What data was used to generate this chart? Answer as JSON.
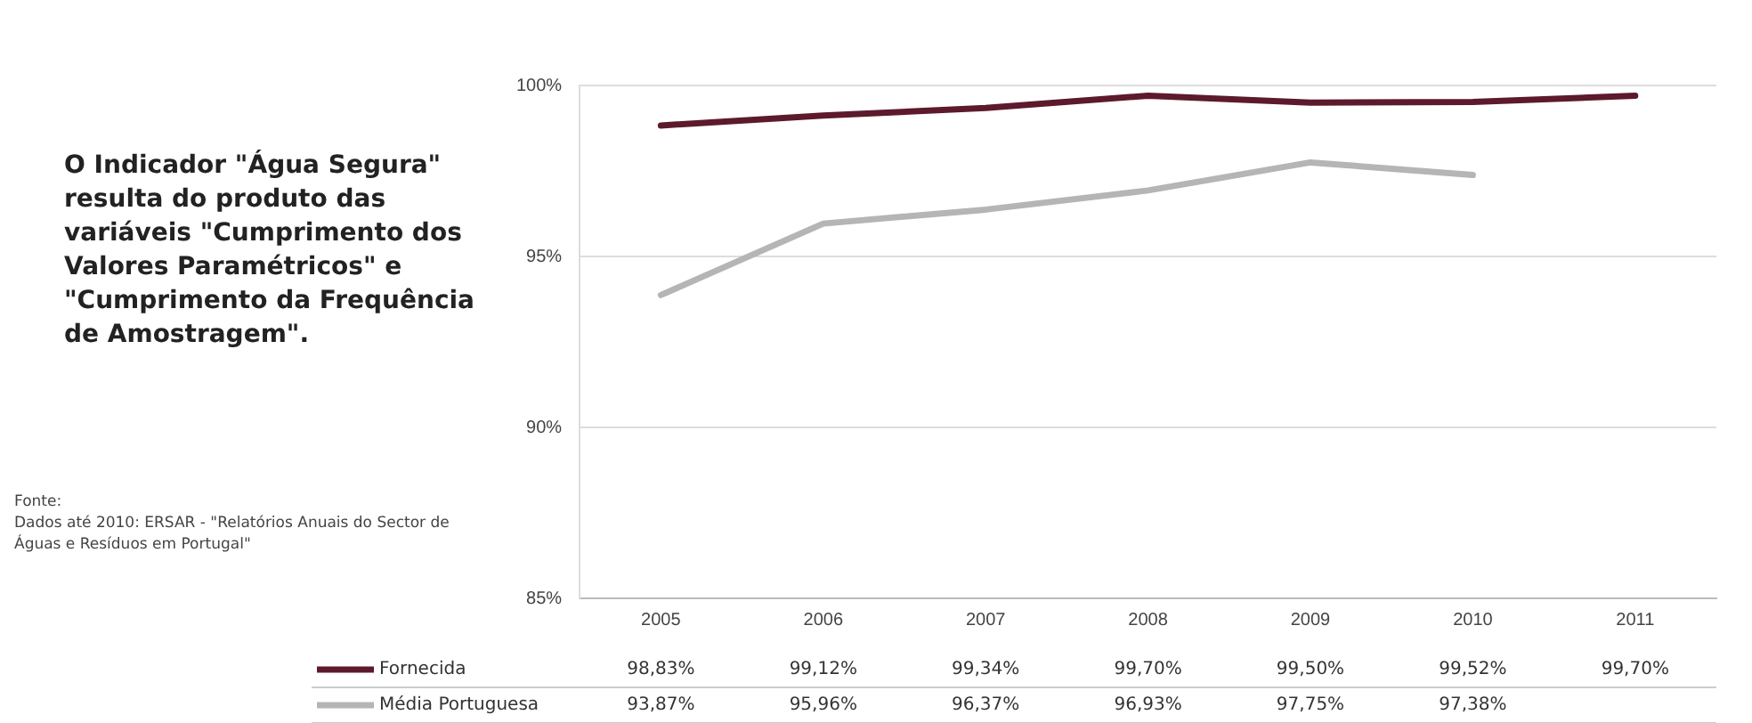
{
  "chart_data": {
    "type": "line",
    "title": "O Indicador \"Água Segura\" resulta do produto das variáveis \"Cumprimento dos Valores Paramétricos\" e \"Cumprimento da Frequência de Amostragem\".",
    "annotations": [
      "Fonte:",
      "Dados até 2010: ERSAR - \"Relatórios Anuais do Sector de Águas e Resíduos em Portugal\""
    ],
    "categories": [
      "2005",
      "2006",
      "2007",
      "2008",
      "2009",
      "2010",
      "2011"
    ],
    "series": [
      {
        "name": "Fornecida",
        "color": "#5c1a2c",
        "values": [
          98.83,
          99.12,
          99.34,
          99.7,
          99.5,
          99.52,
          99.7
        ],
        "value_labels": [
          "98,83%",
          "99,12%",
          "99,34%",
          "99,70%",
          "99,50%",
          "99,52%",
          "99,70%"
        ]
      },
      {
        "name": "Média Portuguesa",
        "color": "#b5b5b5",
        "values": [
          93.87,
          95.96,
          96.37,
          96.93,
          97.75,
          97.38,
          null
        ],
        "value_labels": [
          "93,87%",
          "95,96%",
          "96,37%",
          "96,93%",
          "97,75%",
          "97,38%",
          null
        ]
      }
    ],
    "ylim": [
      85,
      100
    ],
    "yticks": [
      {
        "value": 85,
        "label": "85%"
      },
      {
        "value": 90,
        "label": "90%"
      },
      {
        "value": 95,
        "label": "95%"
      },
      {
        "value": 100,
        "label": "100%"
      }
    ],
    "grid": "y",
    "legend": "bottom",
    "marker": "none",
    "line_style": "solid"
  }
}
